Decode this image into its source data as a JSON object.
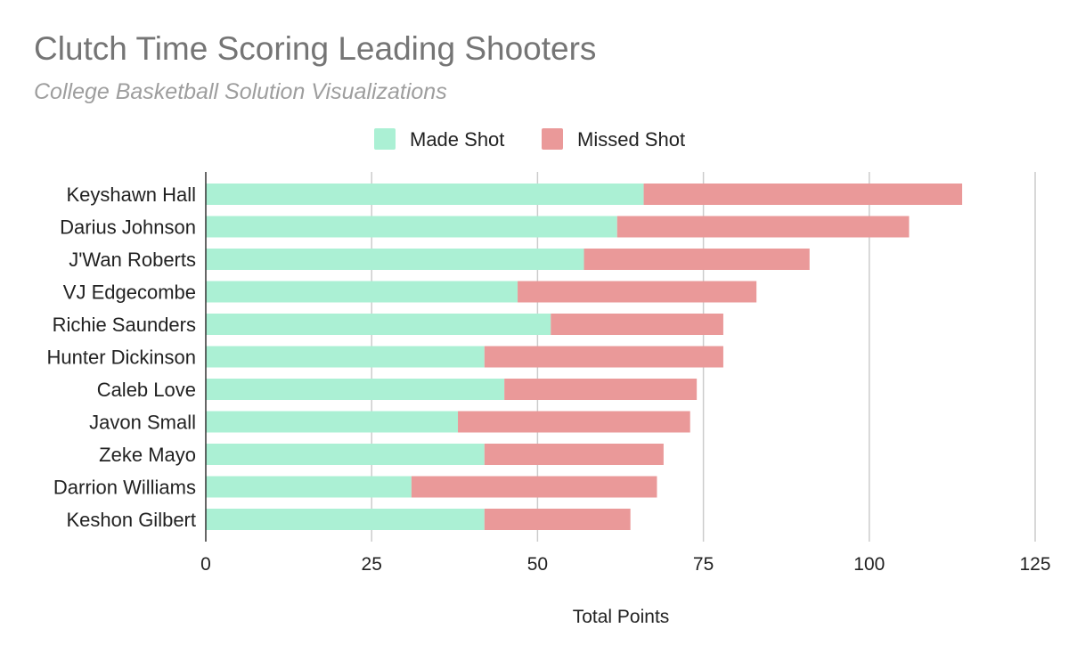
{
  "chart_data": {
    "type": "bar",
    "orientation": "horizontal",
    "stacked": true,
    "title": "Clutch Time Scoring Leading Shooters",
    "subtitle": "College Basketball Solution Visualizations",
    "xlabel": "Total Points",
    "ylabel": "",
    "xlim": [
      0,
      125
    ],
    "xticks": [
      0,
      25,
      50,
      75,
      100,
      125
    ],
    "grid": true,
    "legend_position": "top",
    "categories": [
      "Keyshawn Hall",
      "Darius Johnson",
      "J'Wan Roberts",
      "VJ Edgecombe",
      "Richie Saunders",
      "Hunter Dickinson",
      "Caleb Love",
      "Javon Small",
      "Zeke Mayo",
      "Darrion Williams",
      "Keshon Gilbert"
    ],
    "series": [
      {
        "name": "Made Shot",
        "color": "#abf0d4",
        "values": [
          66,
          62,
          57,
          47,
          52,
          42,
          45,
          38,
          42,
          31,
          42
        ]
      },
      {
        "name": "Missed Shot",
        "color": "#ea9999",
        "values": [
          48,
          44,
          34,
          36,
          26,
          36,
          29,
          35,
          27,
          37,
          22
        ]
      }
    ]
  }
}
